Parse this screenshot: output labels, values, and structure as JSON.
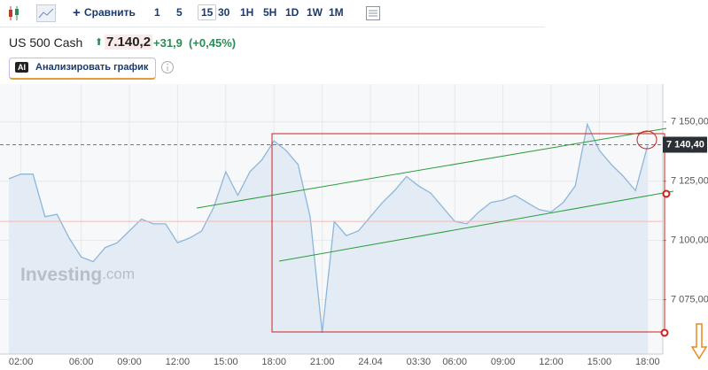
{
  "toolbar": {
    "compare": "Сравнить",
    "intervals": [
      "1",
      "5",
      "15",
      "30",
      "1H",
      "5H",
      "1D",
      "1W",
      "1M"
    ],
    "active_interval": 2
  },
  "header": {
    "instrument": "US 500 Cash",
    "price": "7.140,2",
    "change": "+31,9",
    "change_pct": "(+0,45%)",
    "ai_badge": "AI",
    "ai_button": "Анализировать график"
  },
  "chart_data": {
    "type": "area",
    "watermark": [
      "Investing",
      ".com"
    ],
    "categories": [
      null,
      "02:00",
      null,
      null,
      null,
      null,
      "06:00",
      null,
      null,
      null,
      "09:00",
      null,
      null,
      null,
      "12:00",
      null,
      null,
      null,
      "15:00",
      null,
      null,
      null,
      "18:00",
      null,
      null,
      null,
      "21:00",
      null,
      null,
      null,
      "24.04",
      null,
      null,
      null,
      "03:30",
      null,
      null,
      "06:00",
      null,
      null,
      null,
      "09:00",
      null,
      null,
      null,
      "12:00",
      null,
      null,
      null,
      "15:00",
      null,
      null,
      null,
      "18:00"
    ],
    "series": [
      {
        "color": "#8db6da",
        "values": [
          7126,
          7128,
          7128,
          7110,
          7111,
          7101,
          7093,
          7091,
          7097,
          7099,
          7104,
          7109,
          7107,
          7107,
          7099,
          7101,
          7104,
          7114,
          7129,
          7119,
          7129,
          7134,
          7142,
          7138,
          7132,
          7110,
          7061,
          7108,
          7102,
          7104,
          7110,
          7116,
          7121,
          7127,
          7123,
          7120,
          7114,
          7108,
          7107,
          7112,
          7116,
          7117,
          7119,
          7116,
          7113,
          7112,
          7116,
          7123,
          7149,
          7138,
          7132,
          7127,
          7121,
          7140
        ]
      }
    ],
    "ylim": [
      7052,
      7166
    ],
    "yticks": [
      {
        "value": 7075,
        "label": "7 075,00"
      },
      {
        "value": 7100,
        "label": "7 100,00"
      },
      {
        "value": 7125,
        "label": "7 125,00"
      },
      {
        "value": 7150,
        "label": "7 150,00"
      }
    ],
    "last_price": {
      "value": 7140.4,
      "label": "7 140,40"
    },
    "prev_close": 7108,
    "grid": true
  }
}
